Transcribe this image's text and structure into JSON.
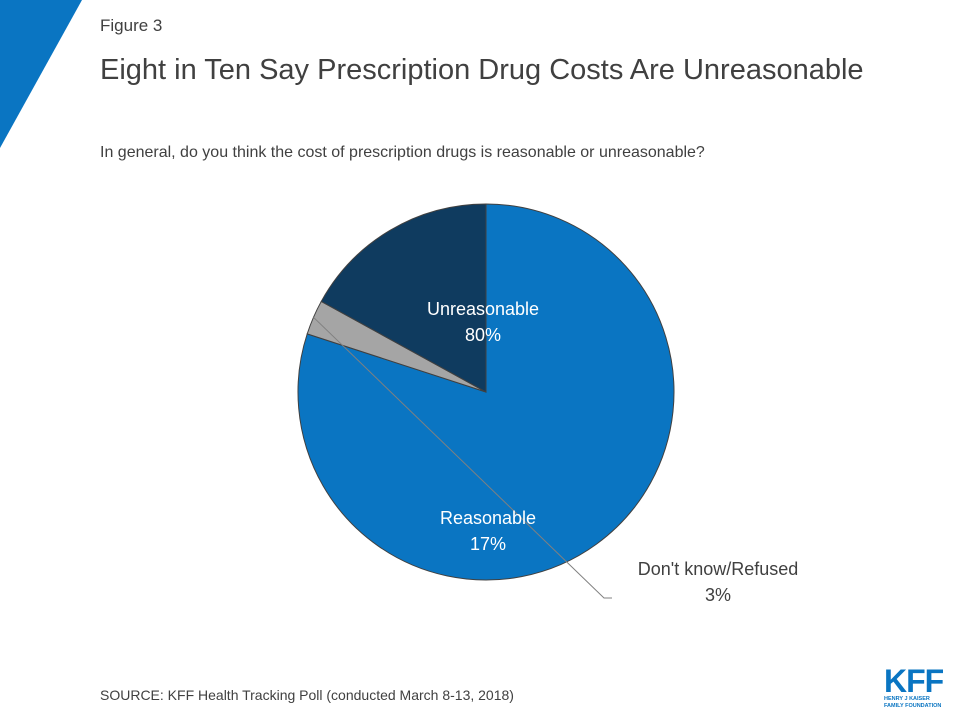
{
  "figure_label": "Figure 3",
  "title": "Eight in Ten Say Prescription Drug Costs Are Unreasonable",
  "subtitle": "In general, do you think the cost of prescription drugs is reasonable or unreasonable?",
  "source": "SOURCE: KFF Health Tracking Poll (conducted March 8-13, 2018)",
  "logo": {
    "mark": "KFF",
    "line1": "HENRY J KAISER",
    "line2": "FAMILY FOUNDATION"
  },
  "colors": {
    "accent": "#0a75c2",
    "unreasonable": "#0a75c2",
    "reasonable": "#0f3b5f",
    "dont_know": "#a5a5a5"
  },
  "chart_data": {
    "type": "pie",
    "title": "",
    "slices": [
      {
        "label": "Unreasonable",
        "value": 80,
        "value_label": "80%",
        "color": "#0a75c2"
      },
      {
        "label": "Don't know/Refused",
        "value": 3,
        "value_label": "3%",
        "color": "#a5a5a5"
      },
      {
        "label": "Reasonable",
        "value": 17,
        "value_label": "17%",
        "color": "#0f3b5f"
      }
    ]
  }
}
